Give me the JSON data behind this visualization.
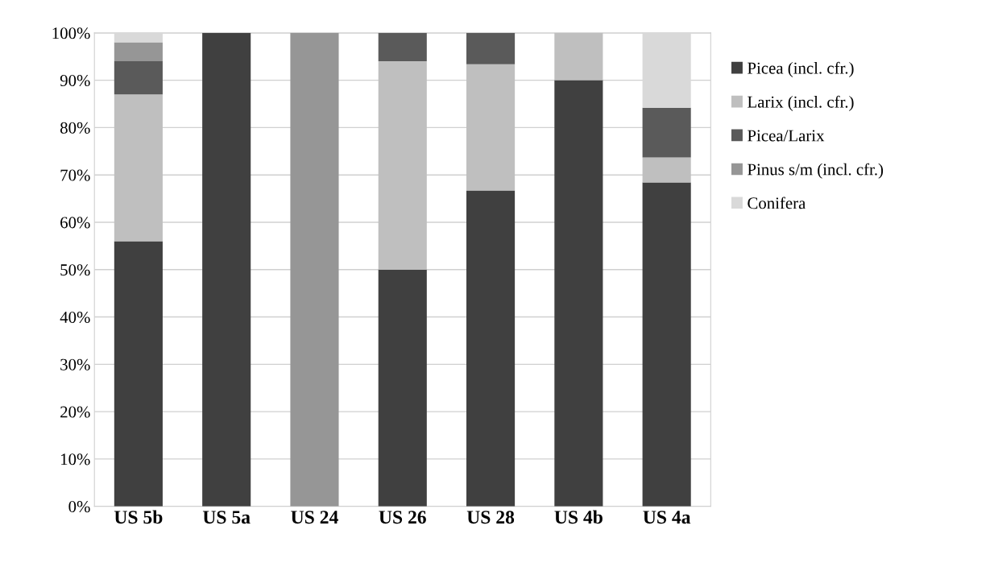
{
  "chart_data": {
    "type": "bar",
    "stacked": true,
    "categories": [
      "US 5b",
      "US 5a",
      "US 24",
      "US 26",
      "US 28",
      "US 4b",
      "US 4a"
    ],
    "series": [
      {
        "name": "Picea (incl. cfr.)",
        "color": "#404040",
        "values": [
          56,
          100,
          0,
          50,
          66.7,
          90,
          68.4
        ]
      },
      {
        "name": "Larix (incl. cfr.)",
        "color": "#bfbfbf",
        "values": [
          31,
          0,
          0,
          44,
          26.7,
          10,
          5.3
        ]
      },
      {
        "name": "Picea/Larix",
        "color": "#5a5a5a",
        "values": [
          7,
          0,
          0,
          6,
          6.6,
          0,
          10.5
        ]
      },
      {
        "name": "Pinus s/m (incl. cfr.)",
        "color": "#969696",
        "values": [
          4,
          0,
          100,
          0,
          0,
          0,
          0
        ]
      },
      {
        "name": "Conifera",
        "color": "#d9d9d9",
        "values": [
          2,
          0,
          0,
          0,
          0,
          0,
          15.8
        ]
      }
    ],
    "ylim": [
      0,
      100
    ],
    "yticks": [
      {
        "value": 0,
        "label": "0%"
      },
      {
        "value": 10,
        "label": "10%"
      },
      {
        "value": 20,
        "label": "20%"
      },
      {
        "value": 30,
        "label": "30%"
      },
      {
        "value": 40,
        "label": "40%"
      },
      {
        "value": 50,
        "label": "50%"
      },
      {
        "value": 60,
        "label": "60%"
      },
      {
        "value": 70,
        "label": "70%"
      },
      {
        "value": 80,
        "label": "80%"
      },
      {
        "value": 90,
        "label": "90%"
      },
      {
        "value": 100,
        "label": "100%"
      }
    ],
    "grid": "y",
    "legend": "right"
  }
}
